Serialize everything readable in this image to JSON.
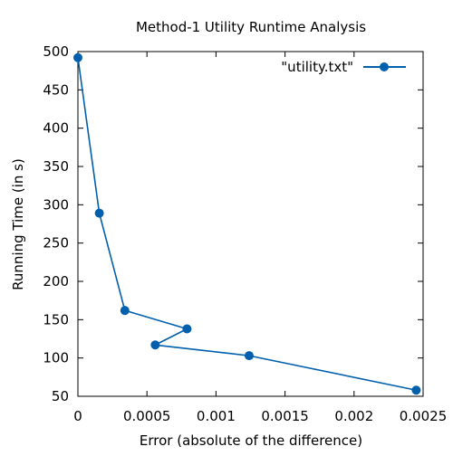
{
  "chart_data": {
    "type": "line",
    "title": "Method-1 Utility Runtime Analysis",
    "xlabel": "Error (absolute of the difference)",
    "ylabel": "Running Time (in s)",
    "xlim": [
      0,
      0.0025
    ],
    "ylim": [
      50,
      500
    ],
    "x_ticks": [
      "0",
      "0.0005",
      "0.001",
      "0.0015",
      "0.002",
      "0.0025"
    ],
    "y_ticks": [
      "50",
      "100",
      "150",
      "200",
      "250",
      "300",
      "350",
      "400",
      "450",
      "500"
    ],
    "grid": false,
    "legend_position": "top-right",
    "series": [
      {
        "name": "\"utility.txt\"",
        "color": "#0060ad",
        "marker": "circle",
        "points": [
          {
            "x": 0.0,
            "y": 492
          },
          {
            "x": 0.000155,
            "y": 289
          },
          {
            "x": 0.00034,
            "y": 162
          },
          {
            "x": 0.00079,
            "y": 138
          },
          {
            "x": 0.00056,
            "y": 117
          },
          {
            "x": 0.00124,
            "y": 103
          },
          {
            "x": 0.00245,
            "y": 58
          }
        ]
      }
    ]
  }
}
